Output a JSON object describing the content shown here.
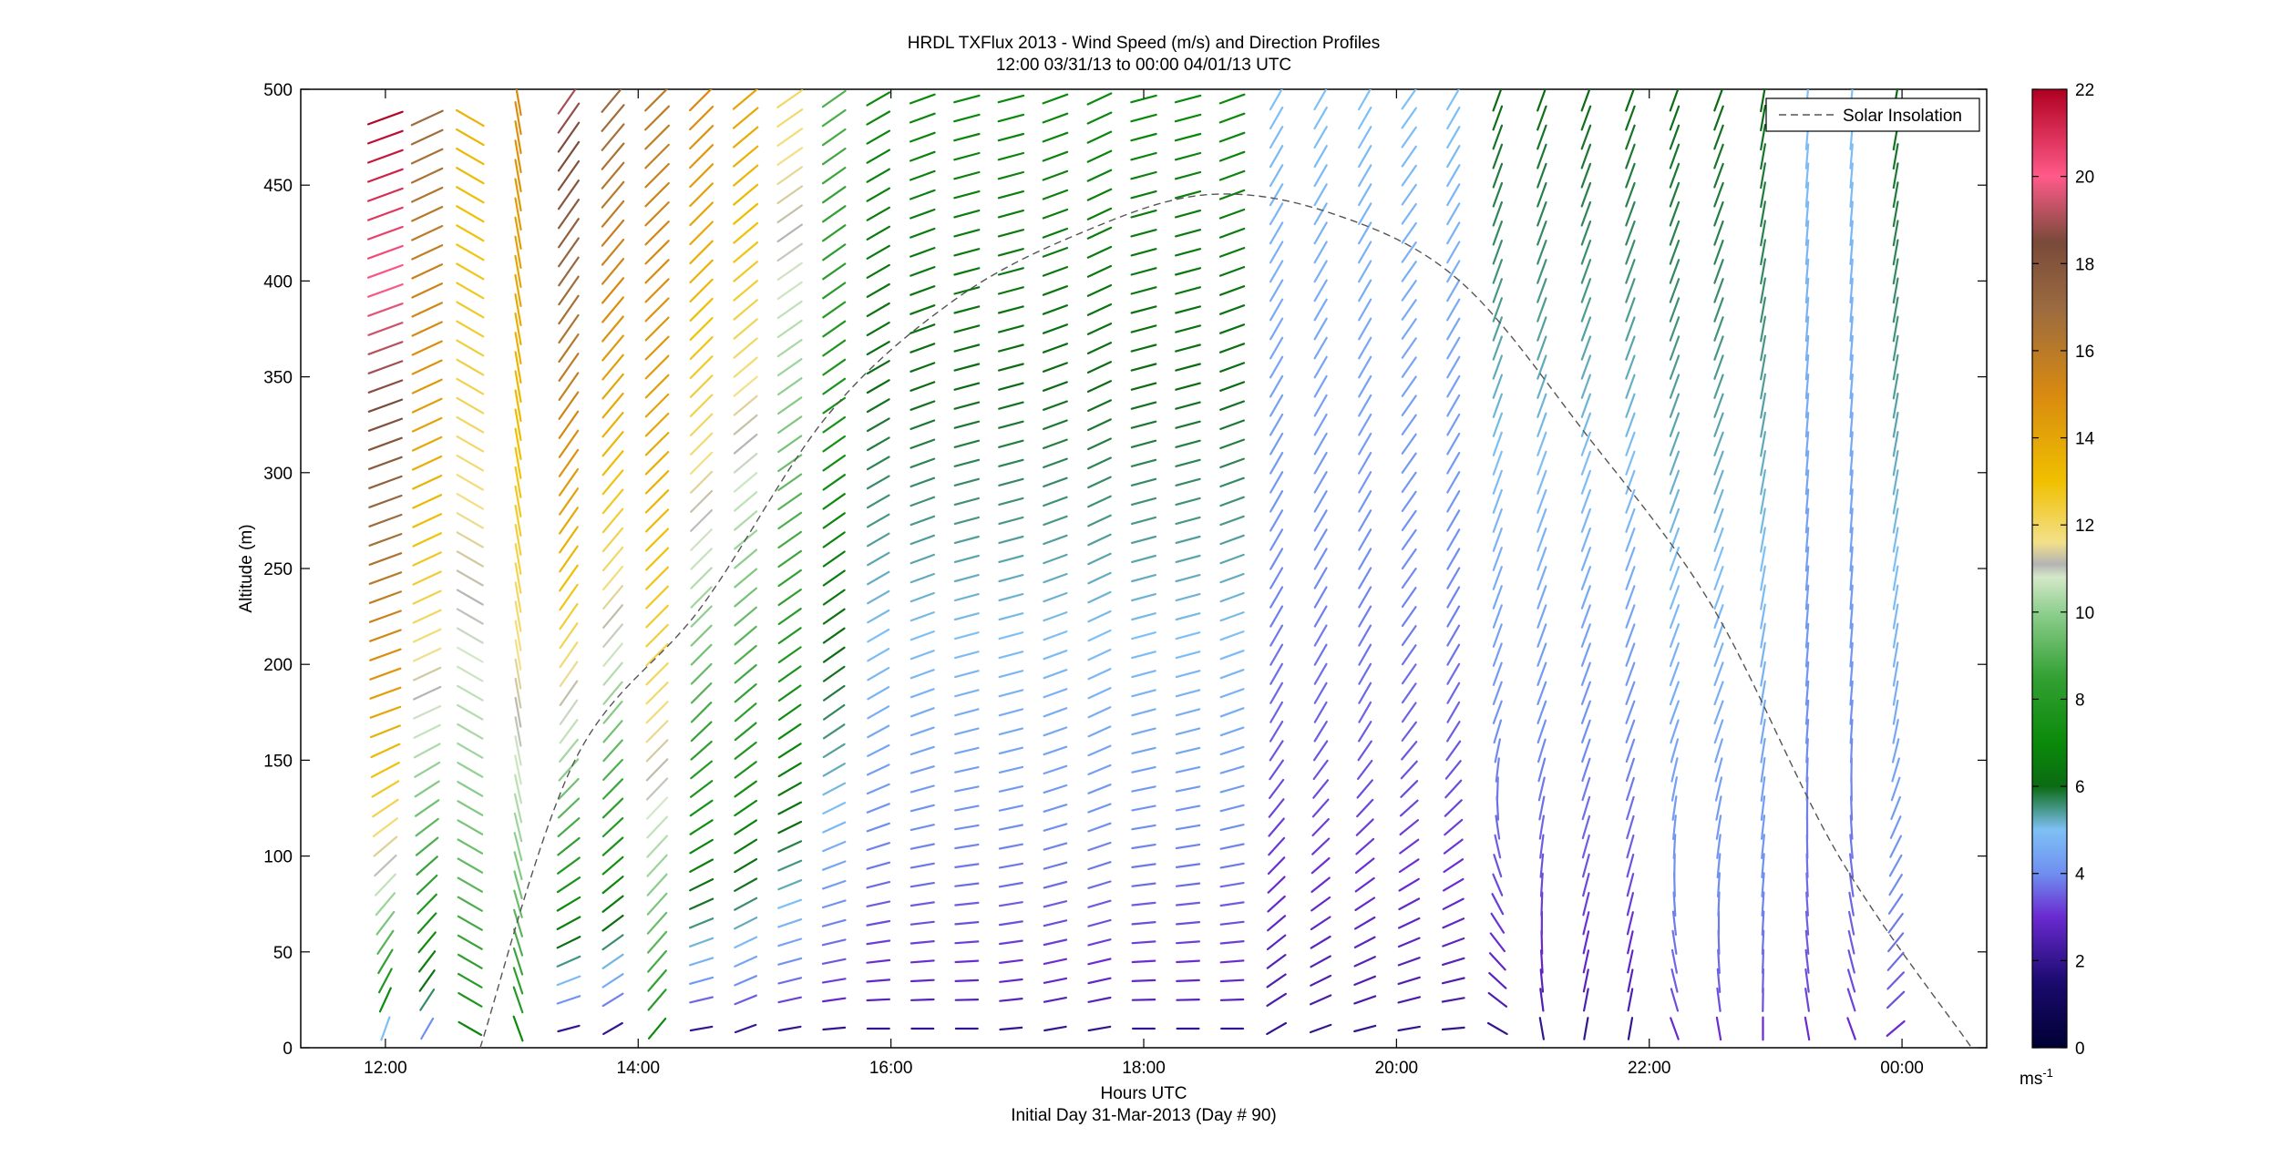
{
  "chart_data": {
    "type": "wind-barb-profile",
    "title": "HRDL TXFlux 2013 - Wind Speed (m/s) and Direction Profiles",
    "subtitle": "12:00 03/31/13 to 00:00 04/01/13  UTC",
    "xlabel": "Hours UTC",
    "xlabel2": "Initial Day 31-Mar-2013 (Day # 90)",
    "ylabel": "Altitude (m)",
    "x_unit": "hours since 12:00 UTC 31-Mar-2013",
    "xlim": [
      -0.67,
      12.67
    ],
    "ylim": [
      0,
      500
    ],
    "x_ticks": [
      {
        "value": 0,
        "label": "12:00"
      },
      {
        "value": 2,
        "label": "14:00"
      },
      {
        "value": 4,
        "label": "16:00"
      },
      {
        "value": 6,
        "label": "18:00"
      },
      {
        "value": 8,
        "label": "20:00"
      },
      {
        "value": 10,
        "label": "22:00"
      },
      {
        "value": 12,
        "label": "00:00"
      }
    ],
    "y_ticks": [
      0,
      50,
      100,
      150,
      200,
      250,
      300,
      350,
      400,
      450,
      500
    ],
    "colorbar": {
      "ticks": [
        0,
        2,
        4,
        6,
        8,
        10,
        12,
        14,
        16,
        18,
        20,
        22
      ],
      "range": [
        0,
        22
      ],
      "unit": "ms",
      "unit_sup": "-1",
      "stops": [
        {
          "v": 0,
          "c": "#000033"
        },
        {
          "v": 1.5,
          "c": "#1a0a6e"
        },
        {
          "v": 3,
          "c": "#6a2ad0"
        },
        {
          "v": 4,
          "c": "#6f8ff0"
        },
        {
          "v": 5,
          "c": "#7ec0f5"
        },
        {
          "v": 6,
          "c": "#0b6b12"
        },
        {
          "v": 7,
          "c": "#0a8a0a"
        },
        {
          "v": 8.5,
          "c": "#33a033"
        },
        {
          "v": 10,
          "c": "#8fcf8f"
        },
        {
          "v": 10.8,
          "c": "#d4e8c8"
        },
        {
          "v": 11.1,
          "c": "#b4b4b4"
        },
        {
          "v": 11.6,
          "c": "#f3e08a"
        },
        {
          "v": 13,
          "c": "#f0c000"
        },
        {
          "v": 15,
          "c": "#d88a10"
        },
        {
          "v": 17,
          "c": "#9a6a40"
        },
        {
          "v": 18.5,
          "c": "#7a4a3a"
        },
        {
          "v": 20,
          "c": "#ff5a8a"
        },
        {
          "v": 22,
          "c": "#b00020"
        }
      ]
    },
    "barb_altitudes": [
      10,
      25,
      35,
      45,
      55,
      65,
      75,
      85,
      95,
      105,
      115,
      125,
      135,
      145,
      155,
      165,
      175,
      185,
      195,
      205,
      215,
      225,
      235,
      245,
      255,
      265,
      275,
      285,
      295,
      305,
      315,
      325,
      335,
      345,
      355,
      365,
      375,
      385,
      395,
      405,
      415,
      425,
      435,
      445,
      455,
      465,
      475,
      485,
      495
    ],
    "profiles": [
      {
        "t": 0.0,
        "speed_surface": 5,
        "speed_top": 22,
        "dir_surface": 20,
        "dir_top": 70,
        "speed_curve": "rising",
        "top": 490
      },
      {
        "t": 0.33,
        "speed_surface": 4,
        "speed_top": 17,
        "dir_surface": 30,
        "dir_top": 65,
        "speed_curve": "rising",
        "top": 490
      },
      {
        "t": 0.67,
        "speed_surface": 7,
        "speed_top": 13.5,
        "dir_surface": 300,
        "dir_top": 300,
        "speed_curve": "rising",
        "top": 490
      },
      {
        "t": 1.05,
        "speed_surface": 7,
        "speed_top": 15,
        "dir_surface": 340,
        "dir_top": 350,
        "speed_curve": "rising",
        "top": 500
      },
      {
        "t": 1.45,
        "speed_surface": 2,
        "speed_top": 19,
        "dir_surface": 75,
        "dir_top": 35,
        "speed_curve": "rising",
        "top": 495
      },
      {
        "t": 1.8,
        "speed_surface": 2,
        "speed_top": 17,
        "dir_surface": 60,
        "dir_top": 40,
        "speed_curve": "rising",
        "top": 495
      },
      {
        "t": 2.15,
        "speed_surface": 7,
        "speed_top": 16,
        "dir_surface": 40,
        "dir_top": 45,
        "speed_curve": "rising",
        "top": 495
      },
      {
        "t": 2.5,
        "speed_surface": 2,
        "speed_top": 15,
        "dir_surface": 80,
        "dir_top": 45,
        "speed_curve": "rising",
        "top": 495
      },
      {
        "t": 2.85,
        "speed_surface": 2,
        "speed_top": 14,
        "dir_surface": 70,
        "dir_top": 50,
        "speed_curve": "rising",
        "top": 495
      },
      {
        "t": 3.2,
        "speed_surface": 2,
        "speed_top": 12,
        "dir_surface": 80,
        "dir_top": 55,
        "speed_curve": "rising",
        "top": 495
      },
      {
        "t": 3.55,
        "speed_surface": 2,
        "speed_top": 9,
        "dir_surface": 85,
        "dir_top": 55,
        "speed_curve": "rising",
        "top": 495
      },
      {
        "t": 3.9,
        "speed_surface": 2,
        "speed_top": 7,
        "dir_surface": 90,
        "dir_top": 60,
        "speed_curve": "rising",
        "top": 495
      },
      {
        "t": 4.25,
        "speed_surface": 2,
        "speed_top": 7,
        "dir_surface": 90,
        "dir_top": 70,
        "speed_curve": "rising",
        "top": 495
      },
      {
        "t": 4.6,
        "speed_surface": 2,
        "speed_top": 7,
        "dir_surface": 90,
        "dir_top": 75,
        "speed_curve": "rising",
        "top": 495
      },
      {
        "t": 4.95,
        "speed_surface": 2,
        "speed_top": 7,
        "dir_surface": 85,
        "dir_top": 75,
        "speed_curve": "rising",
        "top": 495
      },
      {
        "t": 5.3,
        "speed_surface": 2,
        "speed_top": 7,
        "dir_surface": 80,
        "dir_top": 70,
        "speed_curve": "rising",
        "top": 495
      },
      {
        "t": 5.65,
        "speed_surface": 2,
        "speed_top": 7,
        "dir_surface": 80,
        "dir_top": 65,
        "speed_curve": "rising",
        "top": 495
      },
      {
        "t": 6.0,
        "speed_surface": 2,
        "speed_top": 7,
        "dir_surface": 90,
        "dir_top": 75,
        "speed_curve": "rising",
        "top": 495
      },
      {
        "t": 6.35,
        "speed_surface": 2,
        "speed_top": 7,
        "dir_surface": 90,
        "dir_top": 75,
        "speed_curve": "rising",
        "top": 495
      },
      {
        "t": 6.7,
        "speed_surface": 2,
        "speed_top": 7,
        "dir_surface": 90,
        "dir_top": 70,
        "speed_curve": "rising",
        "top": 495
      },
      {
        "t": 7.05,
        "speed_surface": 2,
        "speed_top": 5,
        "dir_surface": 60,
        "dir_top": 30,
        "speed_curve": "rising",
        "top": 495
      },
      {
        "t": 7.4,
        "speed_surface": 2,
        "speed_top": 5,
        "dir_surface": 70,
        "dir_top": 30,
        "speed_curve": "rising",
        "top": 495
      },
      {
        "t": 7.75,
        "speed_surface": 2,
        "speed_top": 5,
        "dir_surface": 75,
        "dir_top": 30,
        "speed_curve": "rising",
        "top": 495
      },
      {
        "t": 8.1,
        "speed_surface": 2,
        "speed_top": 5,
        "dir_surface": 80,
        "dir_top": 35,
        "speed_curve": "rising",
        "top": 495
      },
      {
        "t": 8.45,
        "speed_surface": 2,
        "speed_top": 5,
        "dir_surface": 85,
        "dir_top": 30,
        "speed_curve": "rising",
        "top": 495
      },
      {
        "t": 8.8,
        "speed_surface": 2,
        "speed_top": 6,
        "dir_surface": 300,
        "dir_top": 20,
        "speed_curve": "rising",
        "top": 495
      },
      {
        "t": 9.15,
        "speed_surface": 2,
        "speed_top": 6,
        "dir_surface": 350,
        "dir_top": 20,
        "speed_curve": "rising",
        "top": 495
      },
      {
        "t": 9.5,
        "speed_surface": 2,
        "speed_top": 6,
        "dir_surface": 10,
        "dir_top": 20,
        "speed_curve": "rising",
        "top": 495
      },
      {
        "t": 9.85,
        "speed_surface": 2,
        "speed_top": 6,
        "dir_surface": 10,
        "dir_top": 20,
        "speed_curve": "rising",
        "top": 495
      },
      {
        "t": 10.2,
        "speed_surface": 3,
        "speed_top": 6,
        "dir_surface": 340,
        "dir_top": 20,
        "speed_curve": "rising",
        "top": 495
      },
      {
        "t": 10.55,
        "speed_surface": 3,
        "speed_top": 6,
        "dir_surface": 350,
        "dir_top": 20,
        "speed_curve": "rising",
        "top": 495
      },
      {
        "t": 10.9,
        "speed_surface": 3,
        "speed_top": 6,
        "dir_surface": 0,
        "dir_top": 10,
        "speed_curve": "rising",
        "top": 495
      },
      {
        "t": 11.25,
        "speed_surface": 3,
        "speed_top": 5,
        "dir_surface": 350,
        "dir_top": 5,
        "speed_curve": "rising",
        "top": 495
      },
      {
        "t": 11.6,
        "speed_surface": 3,
        "speed_top": 5,
        "dir_surface": 340,
        "dir_top": 5,
        "speed_curve": "rising",
        "top": 495
      },
      {
        "t": 11.95,
        "speed_surface": 3,
        "speed_top": 6,
        "dir_surface": 50,
        "dir_top": 10,
        "speed_curve": "rising",
        "top": 495
      }
    ],
    "series": [
      {
        "name": "Solar Insolation",
        "style": "dashed",
        "color": "#555555",
        "x": [
          0.75,
          1.5,
          2.5,
          3.5,
          4.5,
          5.5,
          6.5,
          7.5,
          8.5,
          9.5,
          10.5,
          11.5,
          12.55
        ],
        "y": [
          0,
          150,
          230,
          330,
          390,
          425,
          445,
          435,
          400,
          320,
          230,
          100,
          0
        ],
        "peak": {
          "x": 6.75,
          "y": 448
        }
      }
    ],
    "legend": {
      "position": "top-right",
      "entries": [
        "Solar Insolation"
      ]
    },
    "grid": false
  }
}
